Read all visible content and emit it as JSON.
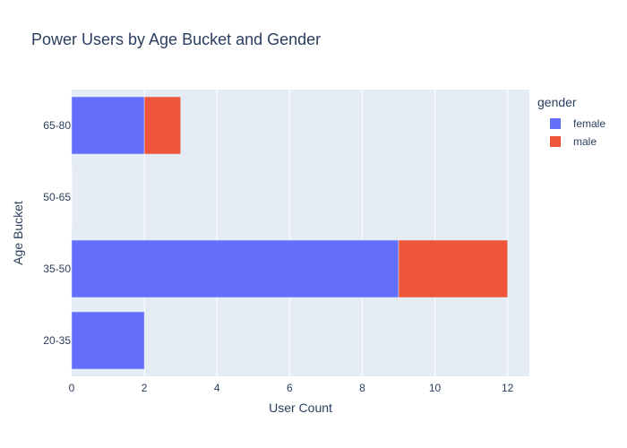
{
  "chart_data": {
    "type": "bar",
    "orientation": "horizontal",
    "barmode": "stack",
    "title": "Power Users by Age Bucket and Gender",
    "xlabel": "User Count",
    "ylabel": "Age Bucket",
    "categories": [
      "20-35",
      "35-50",
      "50-65",
      "65-80"
    ],
    "xlim": [
      0,
      12.6
    ],
    "xticks": [
      "0",
      "2",
      "4",
      "6",
      "8",
      "10",
      "12"
    ],
    "grid": true,
    "legend": {
      "title": "gender",
      "placement": "top-right"
    },
    "series": [
      {
        "name": "female",
        "color": "#636efa",
        "values": [
          2,
          9,
          0,
          2
        ]
      },
      {
        "name": "male",
        "color": "#ef553b",
        "values": [
          0,
          3,
          0,
          1
        ]
      }
    ]
  },
  "colors": {
    "plot_background": "#e5ecf6",
    "grid": "#ffffff",
    "text": "#2a3f5f"
  }
}
